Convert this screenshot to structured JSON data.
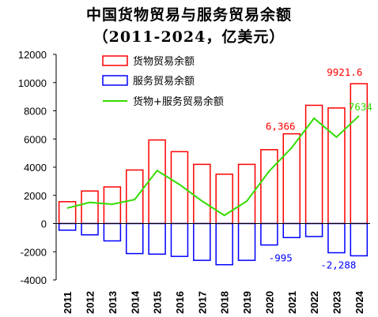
{
  "chart_data": {
    "type": "bar",
    "title": "中国货物贸易与服务贸易余额",
    "subtitle": "（2011-2024，亿美元）",
    "categories": [
      "2011",
      "2012",
      "2013",
      "2014",
      "2015",
      "2016",
      "2017",
      "2018",
      "2019",
      "2020",
      "2021",
      "2022",
      "2023",
      "2024"
    ],
    "series": [
      {
        "name": "货物贸易余额",
        "kind": "bar",
        "color": "#ff0000",
        "values": [
          1550,
          2310,
          2600,
          3800,
          5930,
          5100,
          4200,
          3500,
          4200,
          5240,
          6366,
          8390,
          8200,
          9921.6
        ]
      },
      {
        "name": "服务贸易余额",
        "kind": "bar",
        "color": "#0000ff",
        "values": [
          -470,
          -800,
          -1230,
          -2130,
          -2170,
          -2330,
          -2610,
          -2920,
          -2610,
          -1520,
          -995,
          -920,
          -2070,
          -2288
        ]
      },
      {
        "name": "货物+服务贸易余额",
        "kind": "line",
        "color": "#33dd00",
        "values": [
          1100,
          1500,
          1370,
          1700,
          3760,
          2770,
          1600,
          580,
          1590,
          3720,
          5371,
          7470,
          6130,
          7634
        ]
      }
    ],
    "ylim": [
      -4000,
      12000
    ],
    "yticks": [
      -4000,
      -2000,
      0,
      2000,
      4000,
      6000,
      8000,
      10000,
      12000
    ],
    "legend_position": "top-left",
    "data_labels": [
      {
        "series": 0,
        "index": 13,
        "text": "9921.6",
        "color": "#ff0000"
      },
      {
        "series": 0,
        "index": 10,
        "text": "6,366",
        "color": "#ff0000"
      },
      {
        "series": 2,
        "index": 13,
        "text": "7634",
        "color": "#33dd00"
      },
      {
        "series": 1,
        "index": 10,
        "text": "-995",
        "color": "#0000ff"
      },
      {
        "series": 1,
        "index": 13,
        "text": "-2,288",
        "color": "#0000ff"
      }
    ]
  }
}
